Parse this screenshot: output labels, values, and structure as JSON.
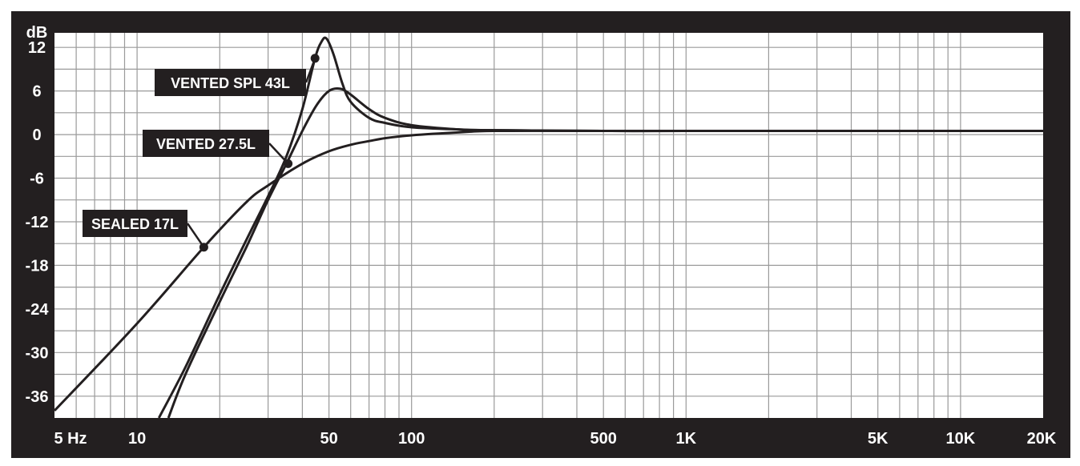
{
  "chart_data": {
    "type": "line",
    "title": "",
    "xlabel": "",
    "ylabel": "dB",
    "x_scale": "log",
    "xlim": [
      5,
      20000
    ],
    "ylim": [
      -39,
      14
    ],
    "x_tick_labels": [
      {
        "value": 5,
        "label": "5 Hz"
      },
      {
        "value": 10,
        "label": "10"
      },
      {
        "value": 50,
        "label": "50"
      },
      {
        "value": 100,
        "label": "100"
      },
      {
        "value": 500,
        "label": "500"
      },
      {
        "value": 1000,
        "label": "1K"
      },
      {
        "value": 5000,
        "label": "5K"
      },
      {
        "value": 10000,
        "label": "10K"
      },
      {
        "value": 20000,
        "label": "20K"
      }
    ],
    "y_ticks": [
      12,
      6,
      0,
      -6,
      -12,
      -18,
      -24,
      -30,
      -36
    ],
    "y_tick_labels": [
      "12",
      "6",
      "0",
      "-6",
      "-12",
      "-18",
      "-24",
      "-30",
      "-36"
    ],
    "grid": true,
    "colors": {
      "frame": "#231f20",
      "plot_bg": "#ffffff",
      "grid": "#9a9a9a",
      "curve": "#231f20",
      "label_text": "#ffffff"
    },
    "series": [
      {
        "name": "VENTED SPL 43L",
        "x": [
          12,
          15,
          20,
          25,
          30,
          35,
          40,
          44.5,
          47,
          49,
          52,
          56,
          60,
          70,
          80,
          100,
          150,
          200,
          500,
          1000,
          5000,
          20000
        ],
        "y": [
          -39,
          -32,
          -22,
          -14.5,
          -8.5,
          -3,
          3.5,
          10.5,
          12.8,
          13.2,
          11,
          7,
          4.5,
          2.3,
          1.6,
          1.0,
          0.7,
          0.6,
          0.5,
          0.5,
          0.5,
          0.5
        ],
        "marker": {
          "x": 44.5,
          "y": 10.5
        }
      },
      {
        "name": "VENTED 27.5L",
        "x": [
          13,
          15,
          20,
          25,
          30,
          35,
          40,
          45,
          50,
          55,
          60,
          70,
          80,
          100,
          150,
          200,
          500,
          1000,
          5000,
          20000
        ],
        "y": [
          -39,
          -33,
          -23,
          -15.5,
          -9,
          -4,
          0.5,
          4,
          6,
          6.3,
          5.5,
          3.5,
          2.3,
          1.3,
          0.7,
          0.6,
          0.5,
          0.5,
          0.5,
          0.5
        ],
        "marker": {
          "x": 35.5,
          "y": -4
        }
      },
      {
        "name": "SEALED 17L",
        "x": [
          5,
          10,
          17.5,
          25,
          30,
          40,
          50,
          60,
          70,
          80,
          100,
          150,
          200,
          500,
          1000,
          5000,
          20000
        ],
        "y": [
          -38,
          -26,
          -15.5,
          -9.3,
          -7,
          -4,
          -2.3,
          -1.4,
          -0.9,
          -0.5,
          -0.1,
          0.3,
          0.5,
          0.5,
          0.5,
          0.5,
          0.5
        ],
        "marker": {
          "x": 17.5,
          "y": -15.5
        }
      }
    ],
    "annotations": [
      {
        "text": "VENTED SPL 43L",
        "series": "VENTED SPL 43L"
      },
      {
        "text": "VENTED 27.5L",
        "series": "VENTED 27.5L"
      },
      {
        "text": "SEALED 17L",
        "series": "SEALED 17L"
      }
    ]
  }
}
